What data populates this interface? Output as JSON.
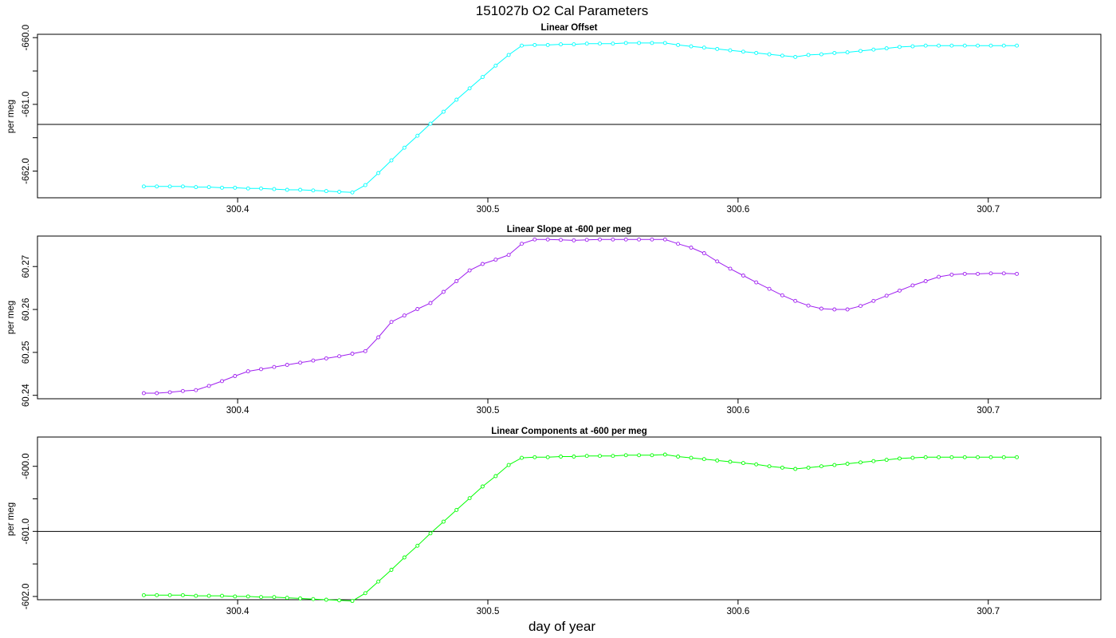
{
  "figure": {
    "title": "151027b   O2 Cal Parameters",
    "xlabel": "day of year"
  },
  "chart_data": [
    {
      "type": "line",
      "title": "Linear Offset",
      "ylabel": "per meg",
      "color": "#00ffff",
      "xlim": [
        300.32,
        300.745
      ],
      "ylim": [
        -662.4,
        -659.95
      ],
      "xticks": [
        300.4,
        300.5,
        300.6,
        300.7
      ],
      "xtick_labels": [
        "300.4",
        "300.5",
        "300.6",
        "300.7"
      ],
      "yticks": [
        -662.0,
        -661.5,
        -661.0,
        -660.5,
        -660.0
      ],
      "ytick_labels": [
        "-662.0",
        "",
        "-661.0",
        "",
        "-660.0"
      ],
      "hline": -661.3,
      "x_start": 300.3625,
      "x_step": 0.005208,
      "y": [
        -662.23,
        -662.23,
        -662.23,
        -662.23,
        -662.24,
        -662.24,
        -662.25,
        -662.25,
        -662.26,
        -662.26,
        -662.27,
        -662.28,
        -662.28,
        -662.29,
        -662.3,
        -662.31,
        -662.32,
        -662.21,
        -662.03,
        -661.84,
        -661.65,
        -661.47,
        -661.29,
        -661.11,
        -660.93,
        -660.76,
        -660.59,
        -660.42,
        -660.26,
        -660.12,
        -660.11,
        -660.11,
        -660.1,
        -660.1,
        -660.09,
        -660.09,
        -660.09,
        -660.08,
        -660.08,
        -660.08,
        -660.08,
        -660.11,
        -660.13,
        -660.15,
        -660.17,
        -660.19,
        -660.21,
        -660.23,
        -660.25,
        -660.27,
        -660.29,
        -660.26,
        -660.25,
        -660.23,
        -660.22,
        -660.2,
        -660.18,
        -660.16,
        -660.14,
        -660.13,
        -660.12,
        -660.12,
        -660.12,
        -660.12,
        -660.12,
        -660.12,
        -660.12,
        -660.12
      ]
    },
    {
      "type": "line",
      "title": "Linear Slope at -600 per meg",
      "ylabel": "per meg",
      "color": "#a020f0",
      "xlim": [
        300.32,
        300.745
      ],
      "ylim": [
        60.2392,
        60.2771
      ],
      "xticks": [
        300.4,
        300.5,
        300.6,
        300.7
      ],
      "xtick_labels": [
        "300.4",
        "300.5",
        "300.6",
        "300.7"
      ],
      "yticks": [
        60.24,
        60.25,
        60.26,
        60.27
      ],
      "ytick_labels": [
        "60.24",
        "60.25",
        "60.26",
        "60.27"
      ],
      "x_start": 300.3625,
      "x_step": 0.005208,
      "y": [
        60.2405,
        60.2405,
        60.2407,
        60.241,
        60.2412,
        60.2422,
        60.2433,
        60.2445,
        60.2456,
        60.2461,
        60.2466,
        60.2471,
        60.2476,
        60.2481,
        60.2486,
        60.2491,
        60.2497,
        60.2503,
        60.2535,
        60.2571,
        60.2586,
        60.2601,
        60.2615,
        60.2641,
        60.2666,
        60.2691,
        60.2706,
        60.2716,
        60.2727,
        60.2753,
        60.2763,
        60.2763,
        60.2762,
        60.2761,
        60.2762,
        60.2763,
        60.2763,
        60.2763,
        60.2763,
        60.2763,
        60.2763,
        60.2753,
        60.2744,
        60.2731,
        60.2712,
        60.2695,
        60.2679,
        60.2663,
        60.2648,
        60.2633,
        60.262,
        60.2609,
        60.2602,
        60.26,
        60.26,
        60.2608,
        60.262,
        60.2632,
        60.2644,
        60.2656,
        60.2666,
        60.2676,
        60.2681,
        60.2683,
        60.2683,
        60.2684,
        60.2684,
        60.2683
      ]
    },
    {
      "type": "line",
      "title": "Linear Components at -600 per meg",
      "ylabel": "per meg",
      "color": "#00ff00",
      "xlim": [
        300.32,
        300.745
      ],
      "ylim": [
        -602.05,
        -599.55
      ],
      "xticks": [
        300.4,
        300.5,
        300.6,
        300.7
      ],
      "xtick_labels": [
        "300.4",
        "300.5",
        "300.6",
        "300.7"
      ],
      "yticks": [
        -602.0,
        -601.5,
        -601.0,
        -600.5,
        -600.0
      ],
      "ytick_labels": [
        "-602.0",
        "",
        "-601.0",
        "",
        "-600.0"
      ],
      "hline": -601.0,
      "x_start": 300.3625,
      "x_step": 0.005208,
      "y": [
        -601.98,
        -601.98,
        -601.98,
        -601.98,
        -601.99,
        -601.99,
        -601.99,
        -602.0,
        -602.0,
        -602.01,
        -602.01,
        -602.02,
        -602.03,
        -602.04,
        -602.05,
        -602.06,
        -602.07,
        -601.95,
        -601.77,
        -601.59,
        -601.4,
        -601.22,
        -601.03,
        -600.85,
        -600.67,
        -600.49,
        -600.31,
        -600.15,
        -599.98,
        -599.87,
        -599.86,
        -599.86,
        -599.85,
        -599.85,
        -599.84,
        -599.84,
        -599.84,
        -599.83,
        -599.83,
        -599.83,
        -599.82,
        -599.85,
        -599.87,
        -599.89,
        -599.91,
        -599.93,
        -599.95,
        -599.97,
        -600.0,
        -600.02,
        -600.04,
        -600.02,
        -600.0,
        -599.98,
        -599.96,
        -599.94,
        -599.92,
        -599.9,
        -599.88,
        -599.87,
        -599.86,
        -599.86,
        -599.86,
        -599.86,
        -599.86,
        -599.86,
        -599.86,
        -599.86
      ]
    }
  ]
}
